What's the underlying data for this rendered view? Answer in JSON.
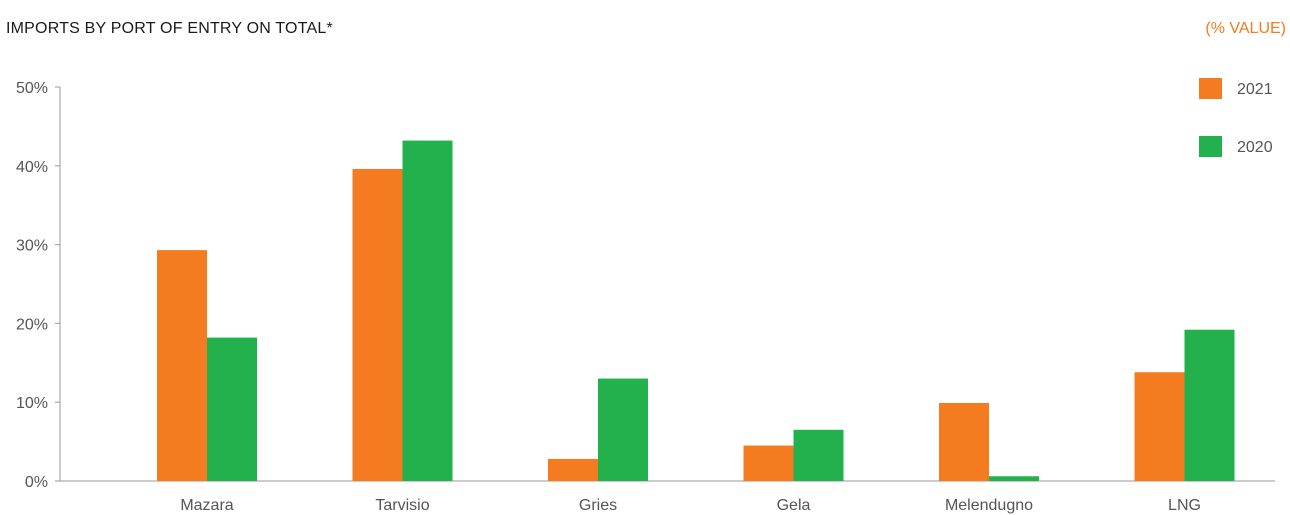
{
  "chart_data": {
    "type": "bar",
    "title": "IMPORTS BY PORT OF ENTRY ON TOTAL*",
    "unit_label": "(% VALUE)",
    "categories": [
      "Mazara",
      "Tarvisio",
      "Gries",
      "Gela",
      "Melendugno",
      "LNG"
    ],
    "series": [
      {
        "name": "2021",
        "color": "#f47b20",
        "values": [
          29.3,
          39.6,
          2.8,
          4.5,
          9.9,
          13.8
        ]
      },
      {
        "name": "2020",
        "color": "#22b14c",
        "values": [
          18.2,
          43.2,
          13.0,
          6.5,
          0.6,
          19.2
        ]
      }
    ],
    "ylim": [
      0,
      50
    ],
    "yticks": [
      0,
      10,
      20,
      30,
      40,
      50
    ],
    "ytick_labels": [
      "0%",
      "10%",
      "20%",
      "30%",
      "40%",
      "50%"
    ],
    "grid": false,
    "legend_position": "top-right",
    "colors": {
      "title": "#1a1a1a",
      "unit": "#f47b20",
      "axis": "#999999",
      "text": "#555555"
    }
  }
}
